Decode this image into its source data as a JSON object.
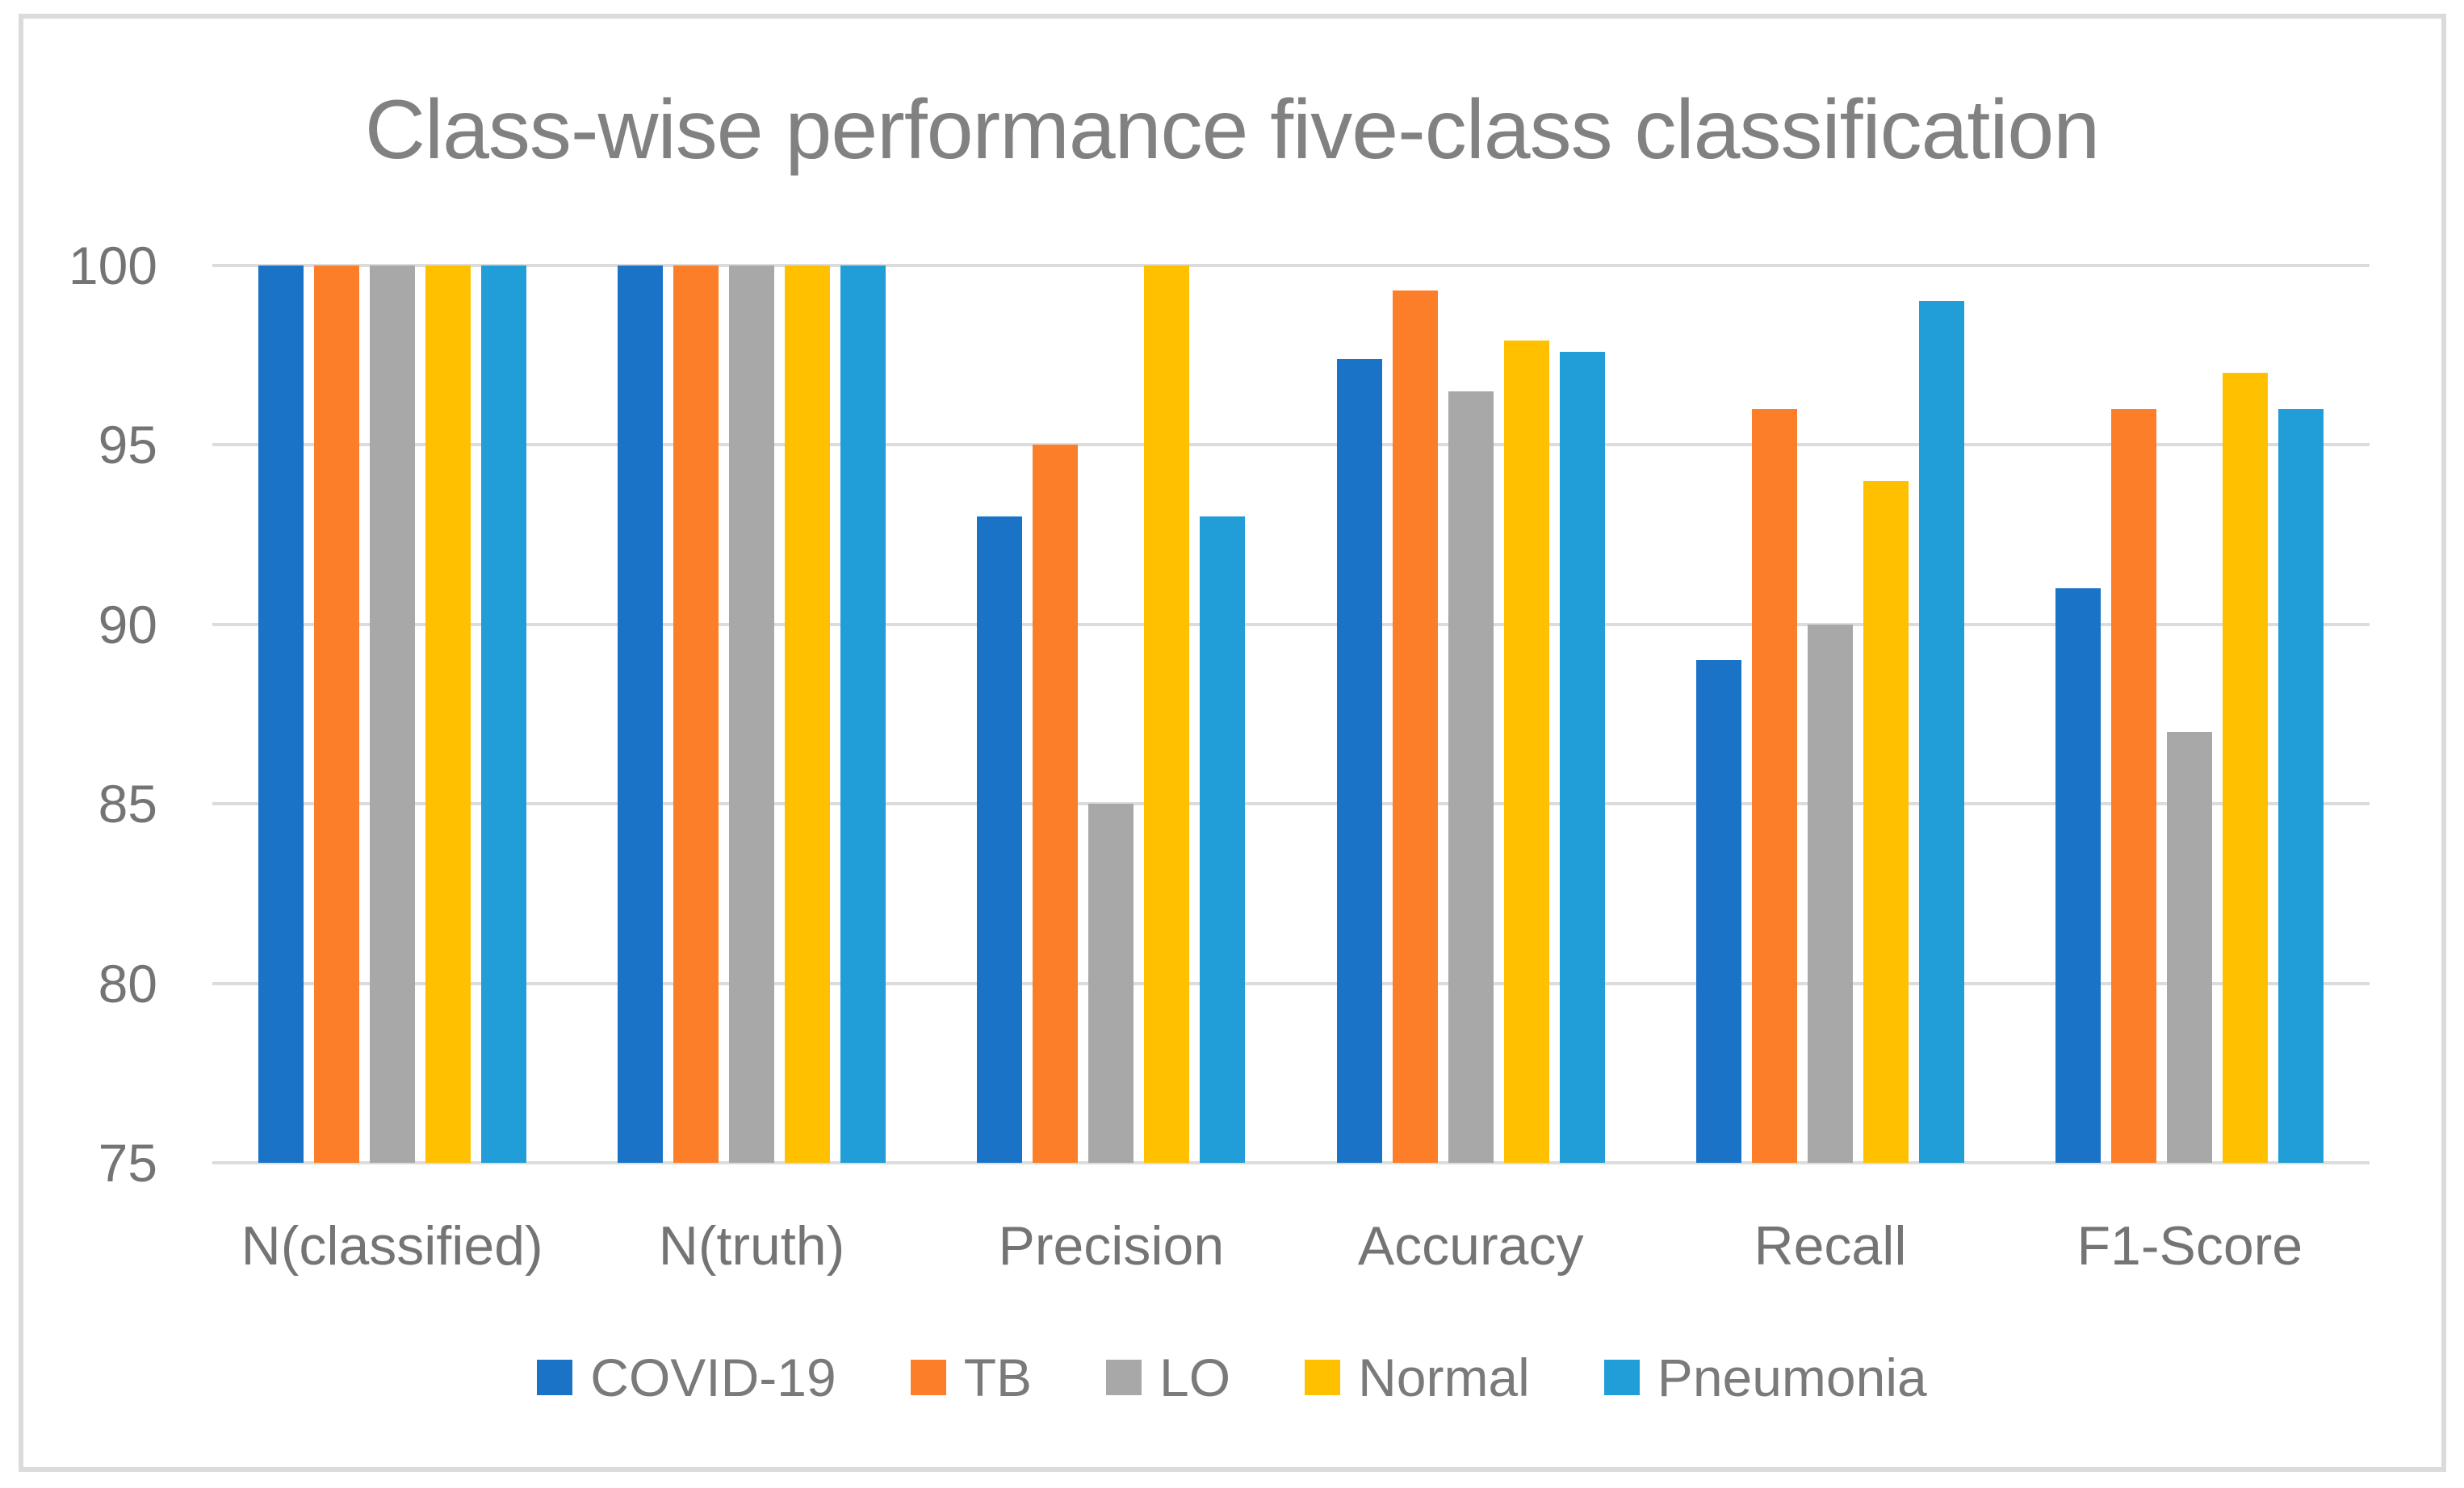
{
  "chart_data": {
    "type": "bar",
    "title": "Class-wise performance five-class classification",
    "categories": [
      "N(classified)",
      "N(truth)",
      "Precision",
      "Accuracy",
      "Recall",
      "F1-Score"
    ],
    "series": [
      {
        "name": "COVID-19",
        "color": "#1B73C7",
        "values": [
          100,
          100,
          93,
          97.4,
          89,
          91
        ]
      },
      {
        "name": "TB",
        "color": "#FD7E29",
        "values": [
          100,
          100,
          95,
          99.3,
          96,
          96
        ]
      },
      {
        "name": "LO",
        "color": "#A8A8A8",
        "values": [
          100,
          100,
          85,
          96.5,
          90,
          87
        ]
      },
      {
        "name": "Normal",
        "color": "#FFC000",
        "values": [
          100,
          100,
          100,
          97.9,
          94,
          97
        ]
      },
      {
        "name": "Pneumonia",
        "color": "#219DD8",
        "values": [
          100,
          100,
          93,
          97.6,
          99,
          96
        ]
      }
    ],
    "xlabel": "",
    "ylabel": "",
    "ylim": [
      75,
      100
    ],
    "yticks": [
      75,
      80,
      85,
      90,
      95,
      100
    ],
    "grid": true,
    "legend_position": "bottom"
  },
  "colors": {
    "title_text": "#818181",
    "axis_text": "#747474",
    "legend_text": "#7A7A7A",
    "gridline": "#DCDCDC",
    "frame_border": "#DBDBDB",
    "background": "#FFFFFF"
  }
}
